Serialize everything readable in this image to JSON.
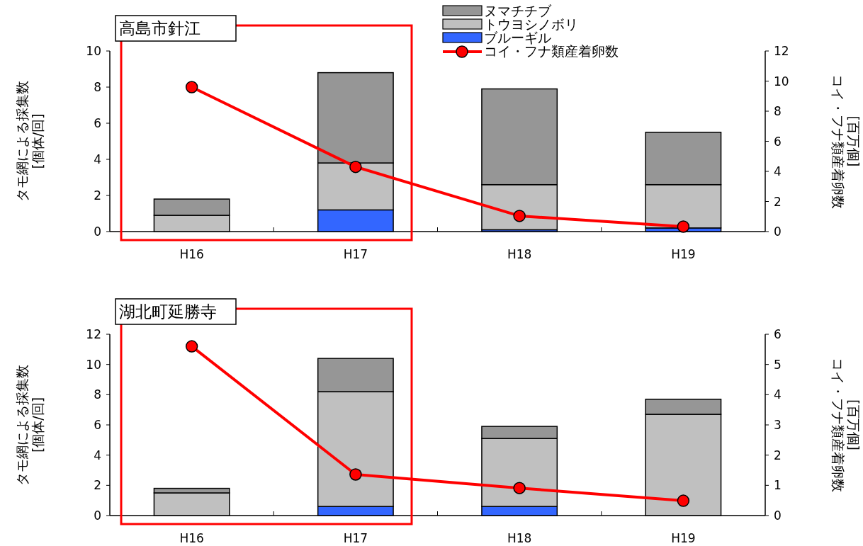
{
  "chart_data": [
    {
      "type": "bar",
      "title": "高島市針江",
      "categories": [
        "H16",
        "H17",
        "H18",
        "H19"
      ],
      "stacked": true,
      "ylabel": "タモ網による採集数\n[個体/回]",
      "y2label": "コイ・フナ類産着卵数\n[百万個]",
      "ylim": [
        0,
        10
      ],
      "yticks": [
        0,
        2,
        4,
        6,
        8,
        10
      ],
      "y2lim": [
        0,
        12
      ],
      "y2ticks": [
        0,
        2,
        4,
        6,
        8,
        10,
        12
      ],
      "legend": "top",
      "marker": "circle",
      "series": [
        {
          "name": "ブルーギル",
          "color": "#3366ff",
          "values": [
            0,
            1.2,
            0.1,
            0.2
          ]
        },
        {
          "name": "トウヨシノボリ",
          "color": "#c0c0c0",
          "values": [
            0.9,
            2.6,
            2.5,
            2.4
          ]
        },
        {
          "name": "ヌマチチブ",
          "color": "#969696",
          "values": [
            0.9,
            5.0,
            5.3,
            2.9
          ]
        },
        {
          "name": "コイ・フナ類産着卵数",
          "type": "line",
          "axis": "y2",
          "color": "#ff0000",
          "values": [
            9.6,
            4.3,
            1.04,
            0.33
          ]
        }
      ]
    },
    {
      "type": "bar",
      "title": "湖北町延勝寺",
      "categories": [
        "H16",
        "H17",
        "H18",
        "H19"
      ],
      "stacked": true,
      "ylabel": "タモ網による採集数\n[個体/回]",
      "y2label": "コイ・フナ類産着卵数\n[百万個]",
      "ylim": [
        0,
        12
      ],
      "yticks": [
        0,
        2,
        4,
        6,
        8,
        10,
        12
      ],
      "y2lim": [
        0,
        6
      ],
      "y2ticks": [
        0,
        1,
        2,
        3,
        4,
        5,
        6
      ],
      "legend": false,
      "marker": "circle",
      "series": [
        {
          "color": "#3366ff",
          "values": [
            0,
            0.6,
            0.6,
            0
          ]
        },
        {
          "color": "#c0c0c0",
          "values": [
            1.5,
            7.6,
            4.5,
            6.7
          ]
        },
        {
          "color": "#969696",
          "values": [
            0.3,
            2.2,
            0.8,
            1.0
          ]
        },
        {
          "type": "line",
          "axis": "y2",
          "color": "#ff0000",
          "values": [
            5.6,
            1.36,
            0.91,
            0.49
          ]
        }
      ]
    }
  ]
}
